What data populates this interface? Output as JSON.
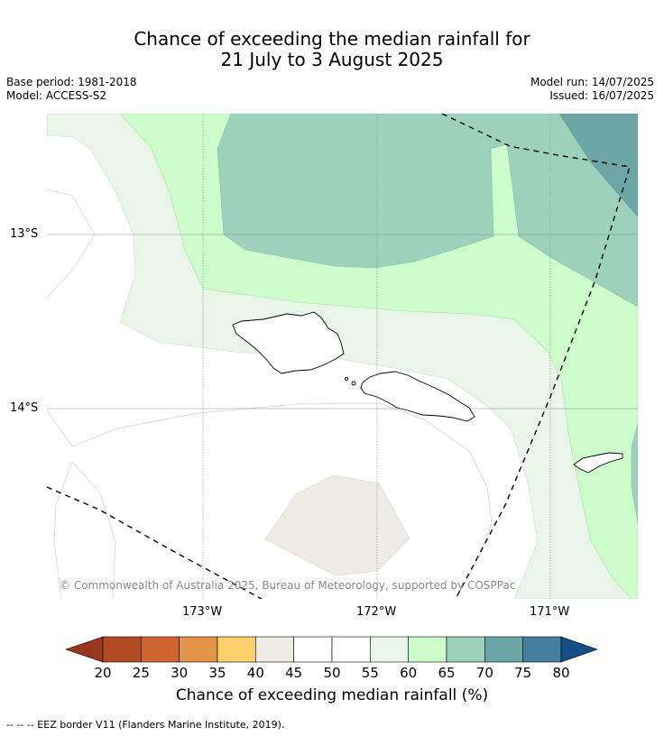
{
  "title": {
    "line1": "Chance of exceeding the median rainfall for",
    "line2": "21 July to 3 August 2025"
  },
  "meta": {
    "base_period": "Base period: 1981-2018",
    "model": "Model: ACCESS-S2",
    "model_run": "Model run: 14/07/2025",
    "issued": "Issued: 16/07/2025"
  },
  "map": {
    "lat_labels": [
      "13°S",
      "14°S"
    ],
    "lon_labels": [
      "173°W",
      "172°W",
      "171°W"
    ],
    "copyright": "© Commonwealth of Australia 2025, Bureau of Meteorology, supported by COSPPac"
  },
  "colorbar": {
    "ticks": [
      "20",
      "25",
      "30",
      "35",
      "40",
      "45",
      "50",
      "55",
      "60",
      "65",
      "70",
      "75",
      "80"
    ],
    "colors": [
      "#b24a24",
      "#cf6431",
      "#e2954a",
      "#fdd16c",
      "#efece5",
      "#ffffff",
      "#ffffff",
      "#eaf5ea",
      "#ccfdcb",
      "#9ed1bc",
      "#6da6a7",
      "#447d9e"
    ],
    "low_end_color": "#99361e",
    "high_end_color": "#164e86",
    "label": "Chance of exceeding median rainfall (%)"
  },
  "footnote": "--  --  -- EEZ border V11 (Flanders Marine Institute, 2019)."
}
